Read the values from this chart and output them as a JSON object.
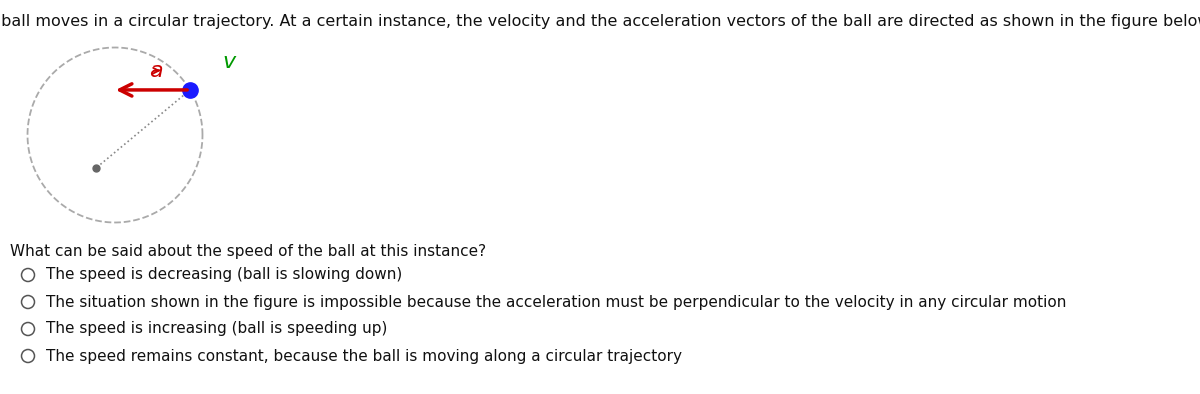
{
  "title": "A ball moves in a circular trajectory. At a certain instance, the velocity and the acceleration vectors of the ball are directed as shown in the figure below.",
  "title_fontsize": 11.5,
  "question": "What can be said about the speed of the ball at this instance?",
  "question_fontsize": 11,
  "options": [
    "The speed is decreasing (ball is slowing down)",
    "The situation shown in the figure is impossible because the acceleration must be perpendicular to the velocity in any circular motion",
    "The speed is increasing (ball is speeding up)",
    "The speed remains constant, because the ball is moving along a circular trajectory"
  ],
  "option_fontsize": 11,
  "background_color": "#ffffff",
  "text_color": "#111111",
  "circle_color": "#aaaaaa",
  "ball_color": "#1a1aff",
  "center_dot_color": "#666666",
  "accel_color": "#cc0000",
  "vel_color": "#009900",
  "radio_color": "#555555"
}
